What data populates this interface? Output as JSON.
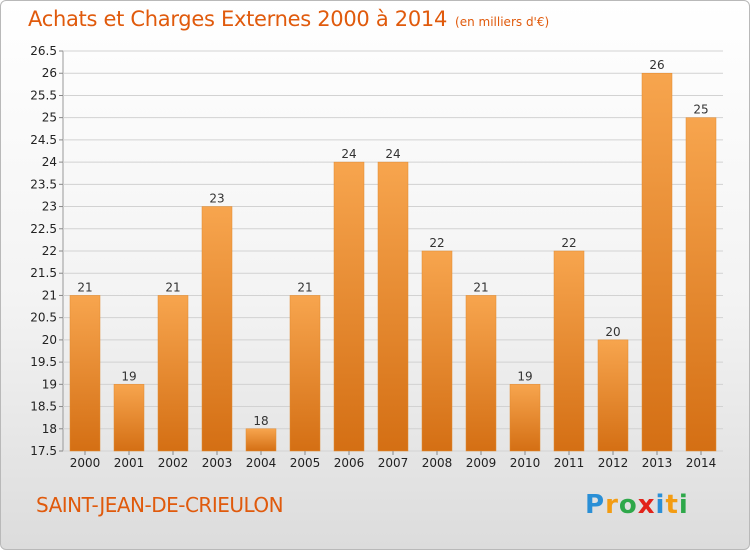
{
  "title": "Achats et Charges Externes 2000 à 2014",
  "subtitle": "(en milliers d'€)",
  "place": "SAINT-JEAN-DE-CRIEULON",
  "logo": {
    "text": "Proxiti",
    "letters": [
      {
        "ch": "P",
        "color": "#2a8fd6"
      },
      {
        "ch": "r",
        "color": "#f39c12"
      },
      {
        "ch": "o",
        "color": "#2ea84a"
      },
      {
        "ch": "x",
        "color": "#e2231a"
      },
      {
        "ch": "i",
        "color": "#2a8fd6"
      },
      {
        "ch": "t",
        "color": "#f39c12"
      },
      {
        "ch": "i",
        "color": "#2ea84a"
      }
    ]
  },
  "chart_data": {
    "type": "bar",
    "title": "Achats et Charges Externes 2000 à 2014",
    "subtitle": "(en milliers d'€)",
    "categories": [
      "2000",
      "2001",
      "2002",
      "2003",
      "2004",
      "2005",
      "2006",
      "2007",
      "2008",
      "2009",
      "2010",
      "2011",
      "2012",
      "2013",
      "2014"
    ],
    "values": [
      21,
      19,
      21,
      23,
      18,
      21,
      24,
      24,
      22,
      21,
      19,
      22,
      20,
      26,
      25
    ],
    "data_labels": [
      "21",
      "19",
      "21",
      "23",
      "18",
      "21",
      "24",
      "24",
      "22",
      "21",
      "19",
      "22",
      "20",
      "26",
      "25"
    ],
    "yticks": [
      "17.5",
      "18",
      "18.5",
      "19",
      "19.5",
      "20",
      "20.5",
      "21",
      "21.5",
      "22",
      "22.5",
      "23",
      "23.5",
      "24",
      "24.5",
      "25",
      "25.5",
      "26",
      "26.5"
    ],
    "ylim": [
      17.5,
      26.5
    ],
    "grid": "horizontal",
    "bar_color": "#f0952f",
    "xlabel": "",
    "ylabel": ""
  }
}
